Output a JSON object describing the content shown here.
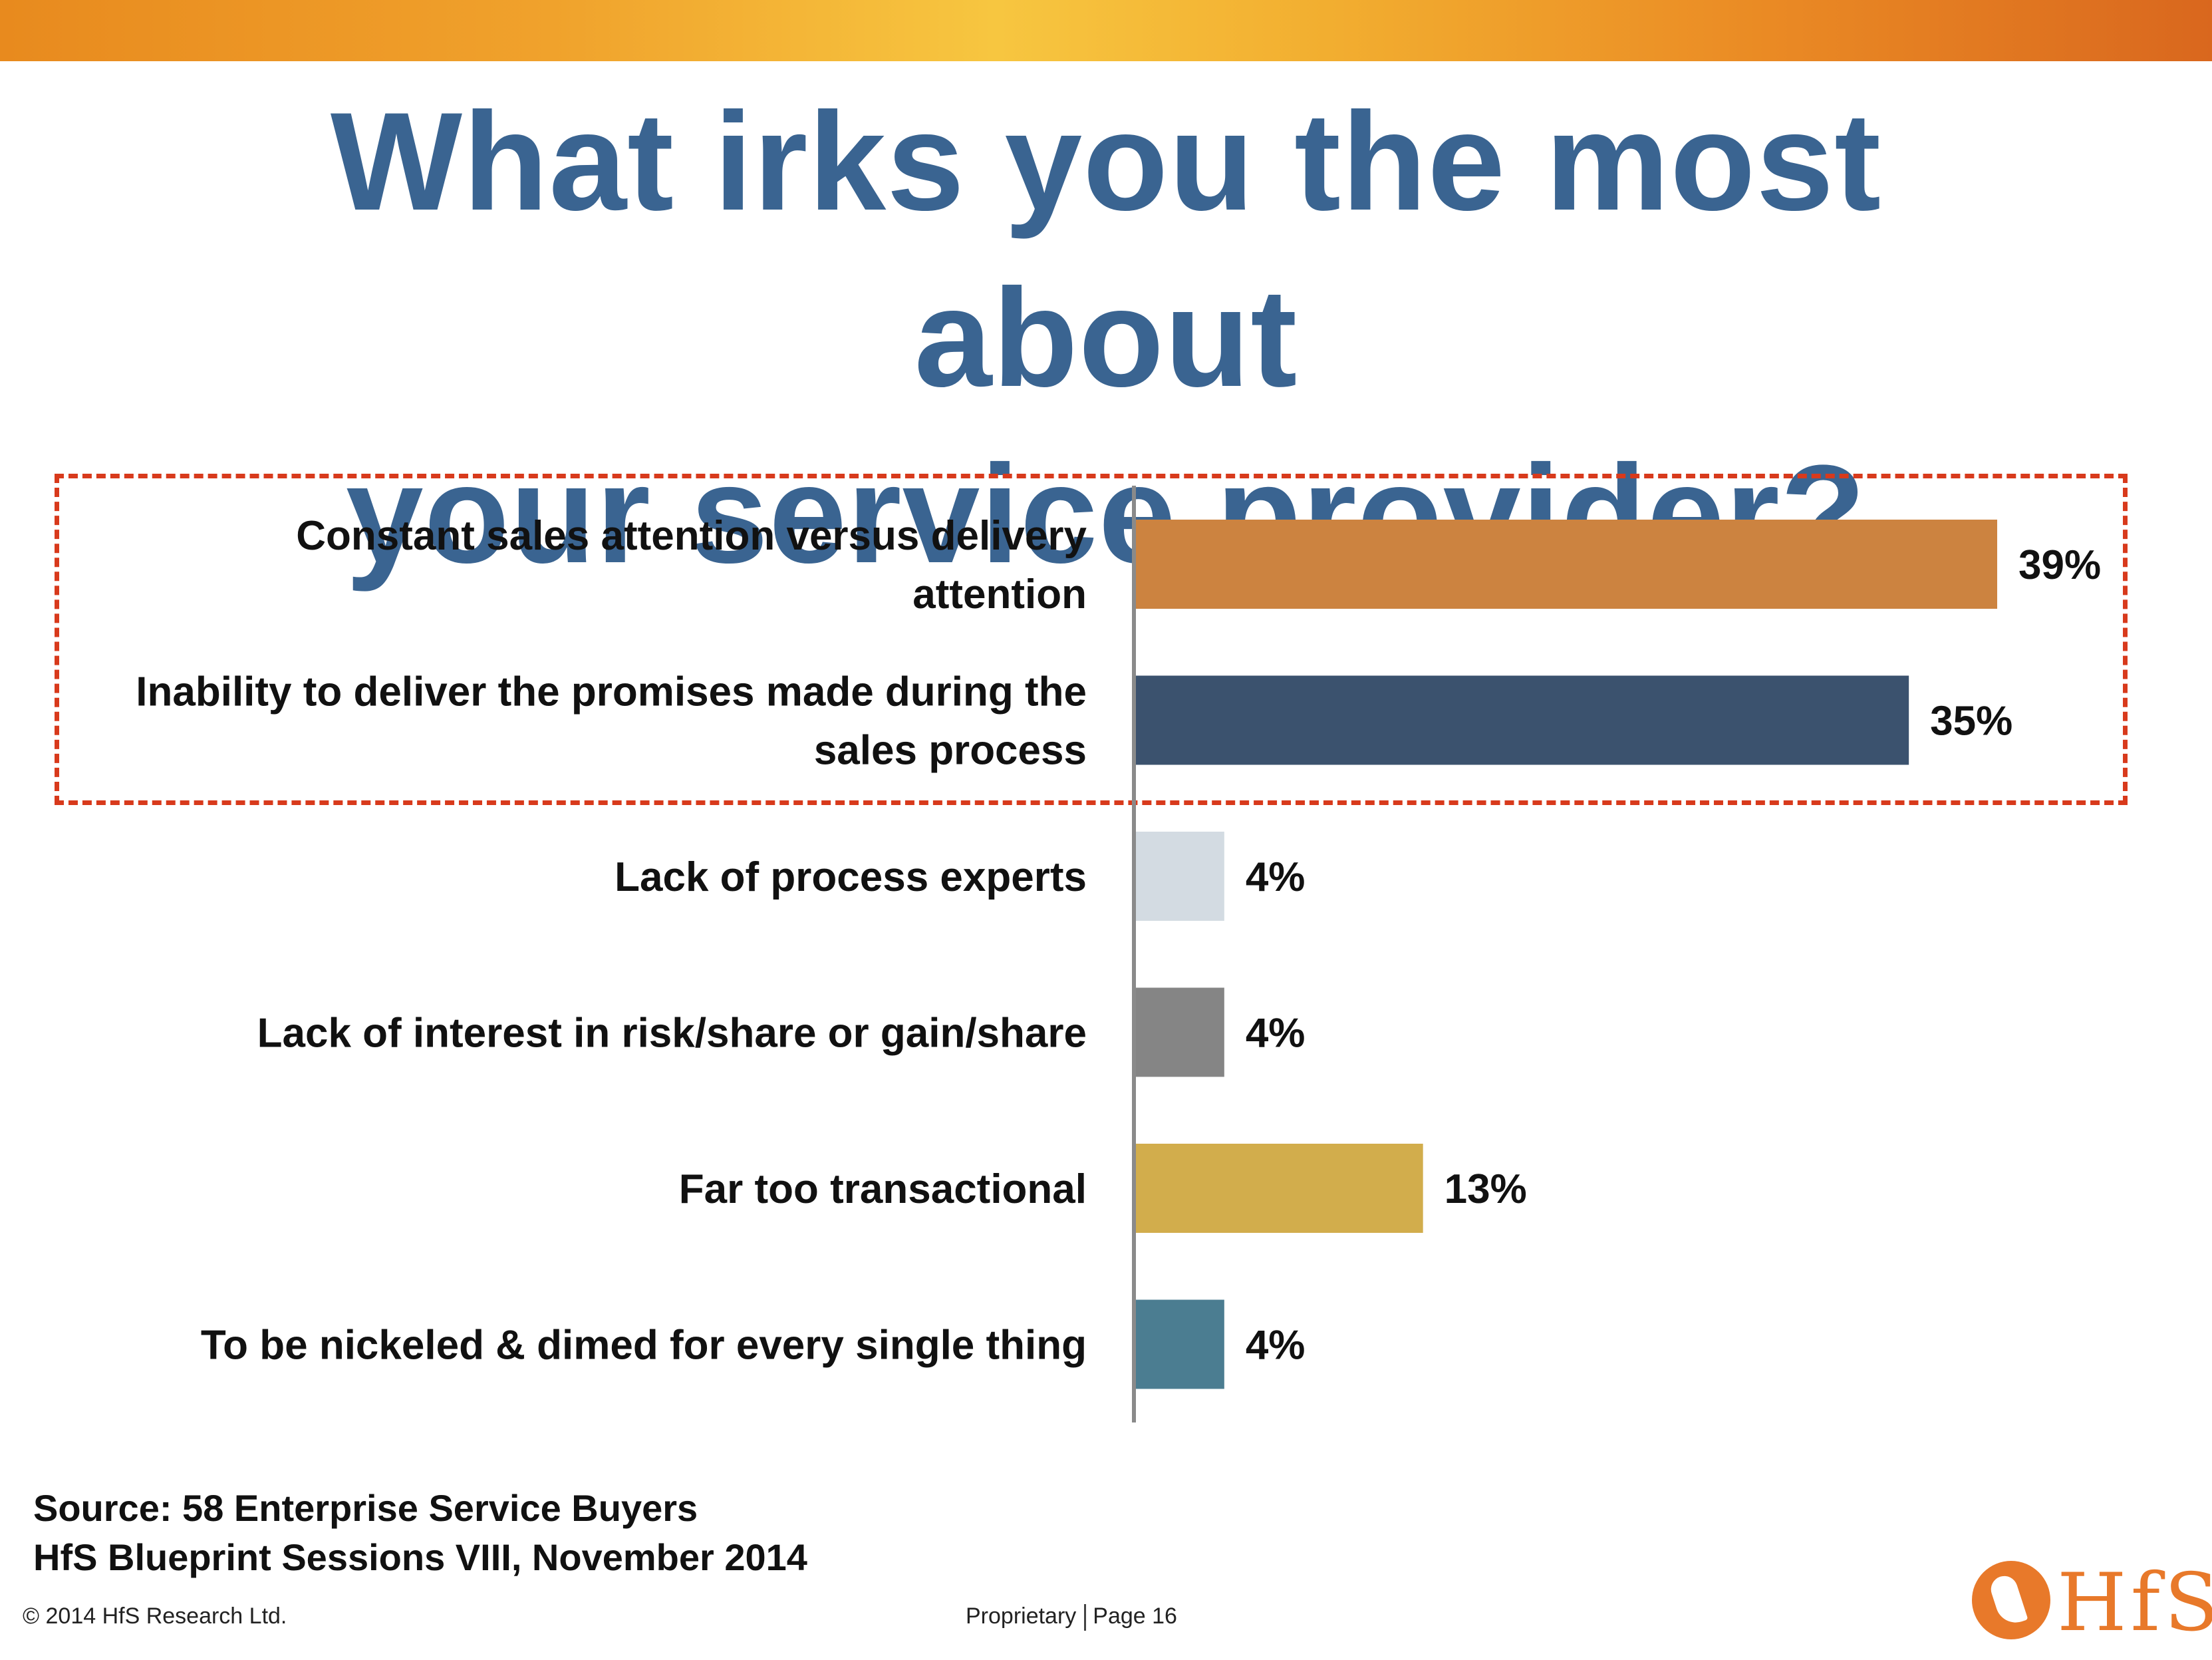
{
  "title": {
    "line1": "What irks you the most about",
    "line2": "your service provider?"
  },
  "chart_data": {
    "type": "bar",
    "orientation": "horizontal",
    "categories": [
      [
        "Constant sales attention versus delivery",
        "attention"
      ],
      [
        "Inability to deliver the promises made during the",
        "sales process"
      ],
      [
        "Lack of process experts"
      ],
      [
        "Lack of interest in risk/share or gain/share"
      ],
      [
        "Far too transactional"
      ],
      [
        "To be nickeled & dimed for every single thing"
      ]
    ],
    "values": [
      39,
      35,
      4,
      4,
      13,
      4
    ],
    "value_labels": [
      "39%",
      "35%",
      "4%",
      "4%",
      "13%",
      "4%"
    ],
    "colors": [
      "#cc8340",
      "#3b526e",
      "#d3dbe2",
      "#858585",
      "#d2ad4c",
      "#4b7d91"
    ],
    "xlim": [
      0,
      39
    ],
    "grid": false,
    "legend": "none",
    "highlighted_categories": [
      0,
      1
    ],
    "highlight_color": "#d83a1c"
  },
  "source": {
    "line1": "Source: 58 Enterprise Service Buyers",
    "line2": "HfS Blueprint Sessions VIII, November 2014"
  },
  "footer": {
    "copyright": "© 2014 HfS Research Ltd.",
    "proprietary": "Proprietary",
    "page": "Page 16"
  },
  "logo": {
    "text": "HfS",
    "color": "#e8792a"
  }
}
